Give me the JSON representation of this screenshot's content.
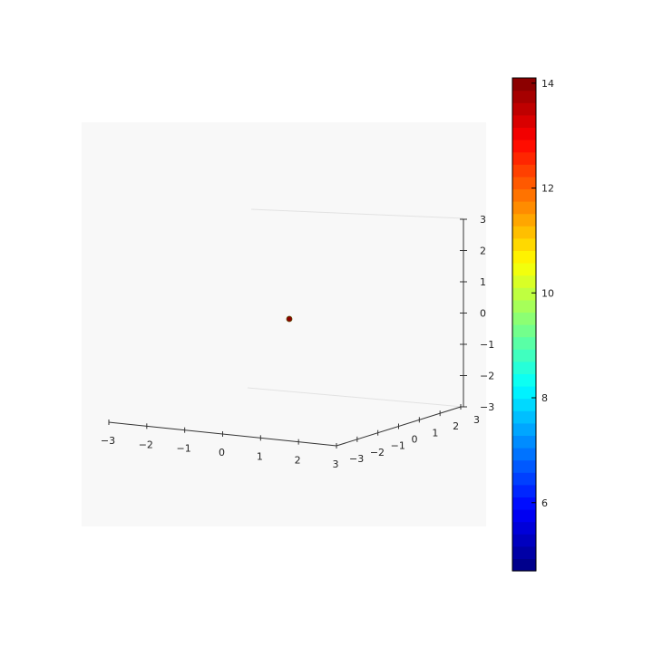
{
  "chart_data": {
    "type": "scatter",
    "projection": "3d",
    "title": "",
    "xlabel": "",
    "ylabel": "",
    "zlabel": "",
    "xlim": [
      -3,
      3
    ],
    "ylim": [
      -3,
      3
    ],
    "zlim": [
      -3,
      3
    ],
    "x_ticks": [
      "−3",
      "−2",
      "−1",
      "0",
      "1",
      "2",
      "3"
    ],
    "y_ticks": [
      "−3",
      "−2",
      "−1",
      "0",
      "1",
      "2",
      "3"
    ],
    "z_ticks": [
      "−3",
      "−2",
      "−1",
      "0",
      "1",
      "2",
      "3"
    ],
    "grid": false,
    "points": [
      {
        "x": 0,
        "y": 0,
        "z": 0,
        "color": "#8b0000"
      }
    ],
    "colorbar": {
      "colormap": "jet",
      "range": [
        4.7,
        14.1
      ],
      "ticks": [
        "6",
        "8",
        "10",
        "12",
        "14"
      ],
      "tick_values": [
        6,
        8,
        10,
        12,
        14
      ],
      "bands": 40
    },
    "pane_color": "#f8f8f8"
  }
}
